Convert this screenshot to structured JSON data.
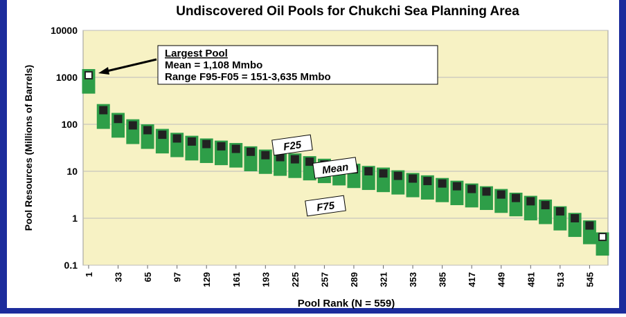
{
  "chart_data": {
    "type": "range",
    "title": "Undiscovered Oil Pools for Chukchi Sea Planning Area",
    "x_label": "Pool Rank (N = 559)",
    "y_label": "Pool Resources (Millions of Barrels)",
    "log_y": true,
    "grid": true,
    "xlim": [
      -5,
      565
    ],
    "ylim": [
      0.1,
      10000
    ],
    "xticks": [
      1,
      33,
      65,
      97,
      129,
      161,
      193,
      225,
      257,
      289,
      321,
      353,
      385,
      417,
      449,
      481,
      513,
      545
    ],
    "yticks": [
      0.1,
      1,
      10,
      100,
      1000,
      10000
    ],
    "x": [
      1,
      17,
      33,
      49,
      65,
      81,
      97,
      113,
      129,
      145,
      161,
      177,
      193,
      209,
      225,
      241,
      257,
      273,
      289,
      305,
      321,
      337,
      353,
      369,
      385,
      401,
      417,
      433,
      449,
      465,
      481,
      497,
      513,
      529,
      545,
      559
    ],
    "series": [
      {
        "name": "F25",
        "color": "#2e9e48",
        "values": [
          1500,
          270,
          175,
          128,
          100,
          80,
          66,
          57,
          50,
          45,
          40,
          34,
          29,
          26,
          24,
          21,
          18.5,
          16.5,
          14.5,
          13,
          12,
          10.5,
          9.2,
          8.2,
          7.2,
          6.3,
          5.5,
          4.8,
          4.2,
          3.5,
          3,
          2.5,
          1.8,
          1.3,
          0.9,
          0.5
        ]
      },
      {
        "name": "Mean",
        "color": "#222222",
        "values": [
          1108,
          200,
          130,
          95,
          75,
          60,
          50,
          43,
          38,
          34,
          30,
          26,
          22,
          20,
          18,
          16,
          14,
          12.5,
          11,
          10,
          9,
          8,
          7,
          6.2,
          5.5,
          4.8,
          4.2,
          3.7,
          3.2,
          2.7,
          2.3,
          1.9,
          1.4,
          1.0,
          0.7,
          0.4
        ]
      },
      {
        "name": "F75",
        "color": "#2e9e48",
        "values": [
          450,
          80,
          52,
          38,
          30,
          24,
          20,
          17,
          15,
          13.5,
          12,
          10,
          8.8,
          8,
          7.2,
          6.4,
          5.6,
          5,
          4.4,
          4,
          3.6,
          3.2,
          2.8,
          2.5,
          2.2,
          1.9,
          1.7,
          1.5,
          1.3,
          1.1,
          0.9,
          0.75,
          0.55,
          0.4,
          0.28,
          0.16
        ]
      }
    ],
    "annotation": {
      "heading": "Largest Pool",
      "lines": [
        "Mean = 1,108 Mmbo",
        "Range F95-F05 = 151-3,635 Mmbo"
      ]
    }
  }
}
